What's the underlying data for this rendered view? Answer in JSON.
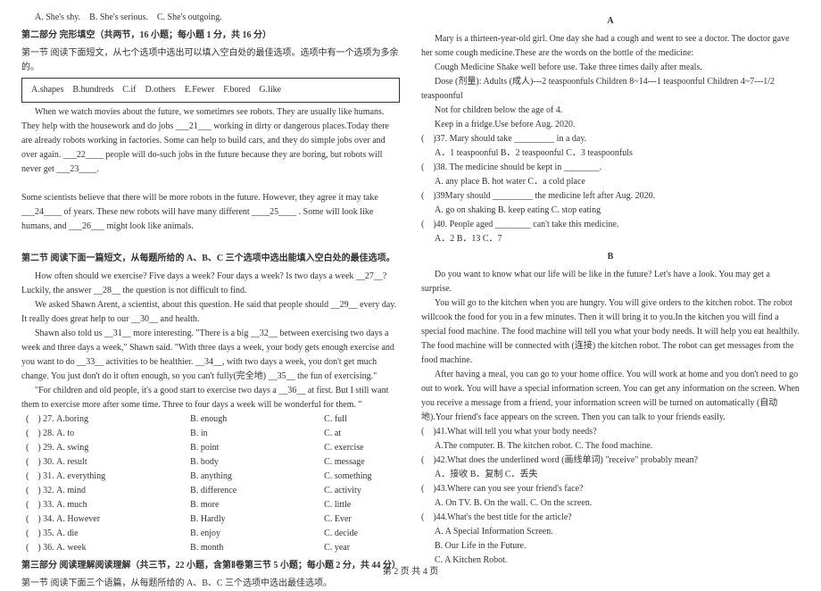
{
  "left": {
    "topOpts": [
      "A.  She's shy.",
      "B.  She's serious.",
      "C.  She's outgoing."
    ],
    "part2Title": "第二部分  完形填空（共两节，16 小题；每小题 1 分，共 16 分）",
    "sec1Title": "第一节  阅读下面短文，从七个选项中选出可以填入空白处的最佳选项。选项中有一个选项为多余的。",
    "boxOpts": [
      "A.shapes",
      "B.hundreds",
      "C.if",
      "D.others",
      "E.Fewer",
      "F.bored",
      "G.like"
    ],
    "p1a": "When we watch movies about the future, we sometimes see robots. They are usually like humans. They help with the housework and do jobs ___21___ working in dirty or dangerous places.Today there are already robots working in factories. Some can help to build cars, and they do simple jobs over and over again. ___22____ people will do-such jobs in the future because they are boring, but robots will never get ___23____.",
    "p1b": "Some scientists believe that there will be more robots in the future. However, they agree it may take ___24____ of years. These new robots will have many different ____25____ . Some will look like humans, and ___26___ might look like animals.",
    "sec2Title": "第二节  阅读下面一篇短文，从每题所给的 A、B、C 三个选项中选出能填入空白处的最佳选项。",
    "p2a": "How often should we exercise? Five days a week? Four days a week? Is two days a week __27__? Luckily, the answer __28__ the question is not difficult to find.",
    "p2b": "We asked Shawn Arent, a scientist, about this question. He said that people should __29__ every day. It really does great help to our __30__ and health.",
    "p2c": "Shawn also told us __31__ more interesting. \"There is a big __32__ between exercising two days a week and three days a week,\" Shawn said. \"With three days a week, your body gets enough exercise and you want to do __33__ activities to be healthier. __34__, with two days a week, you don't get much change. You just don't do it often enough, so you can't fully(完全地) __35__ the fun of exercising.\"",
    "p2d": "\"For children and old people, it's a good start to exercise two days a __36__ at first. But I still want them to exercise more after some time. Three to four days a week will be wonderful for them. \"",
    "rows": [
      {
        "n": "27",
        "a": "A.boring",
        "b": "B. enough",
        "c": "C. full"
      },
      {
        "n": "28",
        "a": "A. to",
        "b": "B. in",
        "c": "C. at"
      },
      {
        "n": "29",
        "a": "A. swing",
        "b": "B. point",
        "c": "C. exercise"
      },
      {
        "n": "30",
        "a": "A. result",
        "b": "B. body",
        "c": "C. message"
      },
      {
        "n": "31",
        "a": "A. everything",
        "b": "B. anything",
        "c": "C. something"
      },
      {
        "n": "32",
        "a": "A. mind",
        "b": "B. difference",
        "c": "C. activity"
      },
      {
        "n": "33",
        "a": "A. much",
        "b": "B. more",
        "c": "C. little"
      },
      {
        "n": "34",
        "a": "A. However",
        "b": "B. Hardly",
        "c": "C. Ever"
      },
      {
        "n": "35",
        "a": "A. die",
        "b": "B. enjoy",
        "c": "C. decide"
      },
      {
        "n": "36",
        "a": "A. week",
        "b": "B. month",
        "c": "C. year"
      }
    ],
    "part3Title": "第三部分  阅读理解阅读理解（共三节，22 小题，含第Ⅱ卷第三节 5 小题；每小题 2 分，共 44 分）",
    "sec3aTitle": "第一节   阅读下面三个语篇，从每题所给的  A、B、C 三个选项中选出最佳选项。"
  },
  "right": {
    "aTitle": "A",
    "aP": "Mary is a thirteen-year-old girl. One day she had a cough and went to see a doctor. The doctor gave her some cough medicine.These are the words on the bottle of the medicine:",
    "med1": "Cough Medicine         Shake well before use.         Take three times daily after meals.",
    "med2": "Dose (剂量): Adults (成人)---2 teaspoonfuls    Children 8~14---1 teaspoonful    Children 4~7---1/2 teaspoonful",
    "med3": "Not for children below the age of 4.",
    "med4": "Keep in a fridge.Use before Aug. 2020.",
    "q37": ")37.  Mary should take _________ in a day.",
    "q37o": "A．1 teaspoonful   B．2 teaspoonful    C．3 teaspoonfuls",
    "q38": ")38.  The medicine should be kept in ________.",
    "q38o": "A.  any place            B.  hot water     C．a cold place",
    "q39": ")39Mary should _________ the medicine left after Aug. 2020.",
    "q39o": "A.  go on shaking      B.  keep eating    C.  stop eating",
    "q40": ")40.  People aged ________ can't take this medicine.",
    "q40o": "A．2                    B．13                 C．7",
    "bTitle": "B",
    "bP1": "Do you want to know what our life will be like in the future? Let's have a look. You may get a surprise.",
    "bP2": "You will go to the kitchen when you are hungry. You will give orders to the kitchen robot. The robot willcook the food for you in a few minutes. Then it will bring it to you.In the kitchen you will find a special food machine. The food machine will tell you what your body needs. It will help you eat healthily. The food machine will be connected with (连接) the kitchen robot. The robot can get messages from the food machine.",
    "bP3": "After having a meal, you can go to your home office. You will work at home and you don't need to go out to work. You will have a special information screen. You can get any information on the screen. When you receive a message from a friend, your information screen will be turned on automatically (自动地).Your friend's face appears on the screen. Then you can talk to your friends easily.",
    "q41": ")41.What will tell you what your body needs?",
    "q41o": "A.The computer.    B. The kitchen robot.    C. The food machine.",
    "q42": ")42.What does the underlined word (画线单词) \"receive\" probably mean?",
    "q42o": "A．接收                B．复制                   C．丢失",
    "q43": ")43.Where can you see your friend's face?",
    "q43o": "A. On TV.    B. On the wall.       C. On the screen.",
    "q44": ")44.What's the best title for the article?",
    "q44a": "A. A Special Information Screen.",
    "q44b": "B. Our Life in the Future.",
    "q44c": "C. A Kitchen Robot."
  },
  "footer": "第  2  页  共  4  页"
}
